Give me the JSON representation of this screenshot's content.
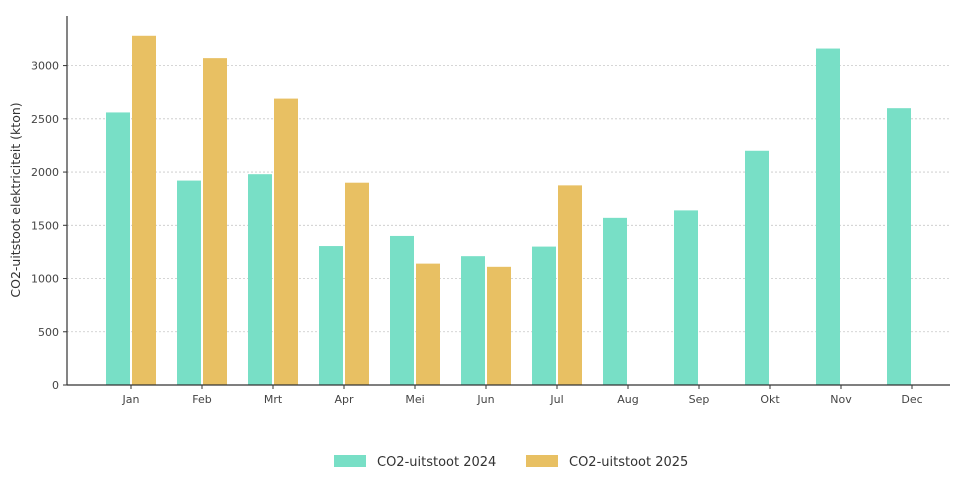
{
  "chart_data": {
    "type": "bar",
    "title": "",
    "xlabel": "",
    "ylabel": "CO2-uitstoot elektriciteit (kton)",
    "categories": [
      "Jan",
      "Feb",
      "Mrt",
      "Apr",
      "Mei",
      "Jun",
      "Jul",
      "Aug",
      "Sep",
      "Okt",
      "Nov",
      "Dec"
    ],
    "series": [
      {
        "name": "CO2-uitstoot 2024",
        "color": "#78dfc6",
        "values": [
          2560,
          1920,
          1980,
          1305,
          1400,
          1210,
          1300,
          1570,
          1640,
          2200,
          3160,
          2600
        ]
      },
      {
        "name": "CO2-uitstoot 2025",
        "color": "#e8c063",
        "values": [
          3280,
          3070,
          2690,
          1900,
          1140,
          1110,
          1875,
          null,
          null,
          null,
          null,
          null
        ]
      }
    ],
    "ylim": [
      0,
      3400
    ],
    "yticks": [
      0,
      500,
      1000,
      1500,
      2000,
      2500,
      3000
    ],
    "grid": "horizontal-dotted",
    "legend": "bottom-center"
  }
}
